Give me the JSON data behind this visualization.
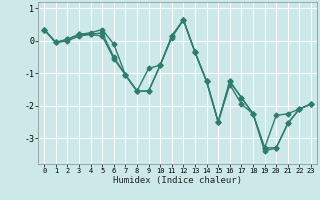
{
  "xlabel": "Humidex (Indice chaleur)",
  "bg_color": "#cce8e8",
  "grid_color": "#ffffff",
  "line_color": "#2e7d6e",
  "marker": "D",
  "markersize": 2.5,
  "linewidth": 1.0,
  "xlim": [
    -0.5,
    23.5
  ],
  "ylim": [
    -3.8,
    1.2
  ],
  "yticks": [
    1,
    0,
    -1,
    -2,
    -3
  ],
  "xticks": [
    0,
    1,
    2,
    3,
    4,
    5,
    6,
    7,
    8,
    9,
    10,
    11,
    12,
    13,
    14,
    15,
    16,
    17,
    18,
    19,
    20,
    21,
    22,
    23
  ],
  "series": [
    [
      0.35,
      -0.05,
      0.05,
      0.2,
      0.25,
      0.35,
      -0.1,
      -1.05,
      -1.55,
      -0.85,
      -0.75,
      0.15,
      0.65,
      -0.35,
      -1.25,
      -2.5,
      -1.25,
      -1.75,
      -2.25,
      -3.3,
      -2.3,
      -2.25,
      -2.1,
      -1.95
    ],
    [
      0.35,
      -0.05,
      0.05,
      0.2,
      0.2,
      0.25,
      -0.5,
      -1.05,
      -1.55,
      -1.55,
      -0.75,
      0.15,
      0.65,
      -0.35,
      -1.25,
      -2.5,
      -1.35,
      -1.95,
      -2.25,
      -3.4,
      -3.3,
      -2.55,
      -2.1,
      -1.95
    ],
    [
      0.35,
      -0.05,
      0.0,
      0.15,
      0.2,
      0.15,
      -0.55,
      -1.05,
      -1.55,
      -1.55,
      -0.75,
      0.1,
      0.65,
      -0.35,
      -1.25,
      -2.5,
      -1.25,
      -1.75,
      -2.25,
      -3.3,
      -3.3,
      -2.55,
      -2.1,
      -1.95
    ]
  ]
}
